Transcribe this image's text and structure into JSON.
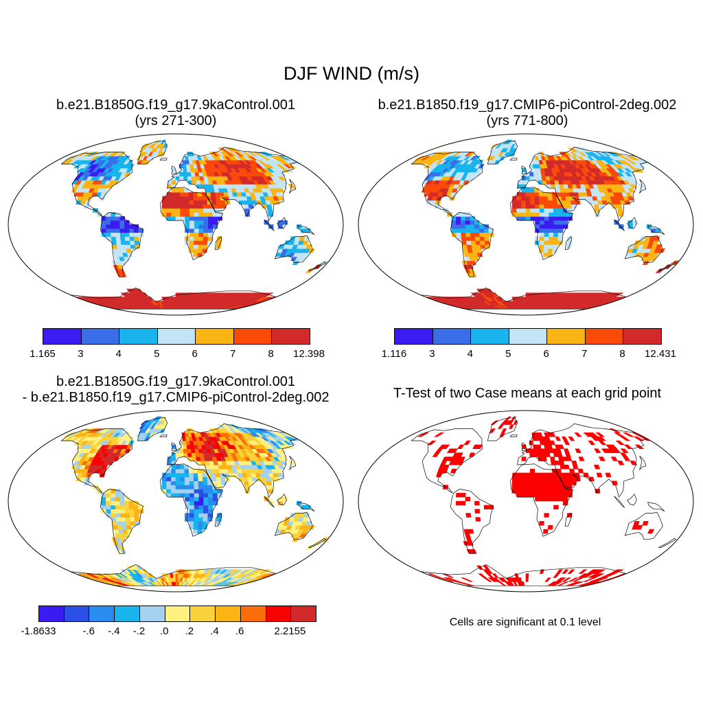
{
  "title": "DJF WIND (m/s)",
  "panels": [
    {
      "title_line1": "b.e21.B1850G.f19_g17.9kaControl.001",
      "title_line2": "(yrs 271-300)",
      "colorbar": {
        "labels": [
          "1.165",
          "3",
          "4",
          "5",
          "6",
          "7",
          "8",
          "12.398"
        ],
        "colors": [
          "#3a1cf2",
          "#3a6ee8",
          "#19b4ee",
          "#c3e4f5",
          "#fab414",
          "#fa4a0a",
          "#d22a2a"
        ]
      }
    },
    {
      "title_line1": "b.e21.B1850.f19_g17.CMIP6-piControl-2deg.002",
      "title_line2": "(yrs 771-800)",
      "colorbar": {
        "labels": [
          "1.116",
          "3",
          "4",
          "5",
          "6",
          "7",
          "8",
          "12.431"
        ],
        "colors": [
          "#3a1cf2",
          "#3a6ee8",
          "#19b4ee",
          "#c3e4f5",
          "#fab414",
          "#fa4a0a",
          "#d22a2a"
        ]
      }
    },
    {
      "title_line1": "b.e21.B1850G.f19_g17.9kaControl.001",
      "title_line2": "- b.e21.B1850.f19_g17.CMIP6-piControl-2deg.002",
      "colorbar": {
        "labels": [
          "-1.8633",
          "",
          "-.6",
          "-.4",
          "-.2",
          ".0",
          ".2",
          ".4",
          ".6",
          "",
          "2.2155"
        ],
        "colors": [
          "#3a1cf2",
          "#2c50e6",
          "#2a8cf0",
          "#19b4ee",
          "#a4d2ee",
          "#fff080",
          "#fad23c",
          "#fab414",
          "#fa6e0a",
          "#fa0000",
          "#d22a2a"
        ]
      }
    },
    {
      "title_line1": "T-Test of two Case means at each grid point",
      "note": "Cells are significant at 0.1 level",
      "sig_color": "#ff0000"
    }
  ]
}
